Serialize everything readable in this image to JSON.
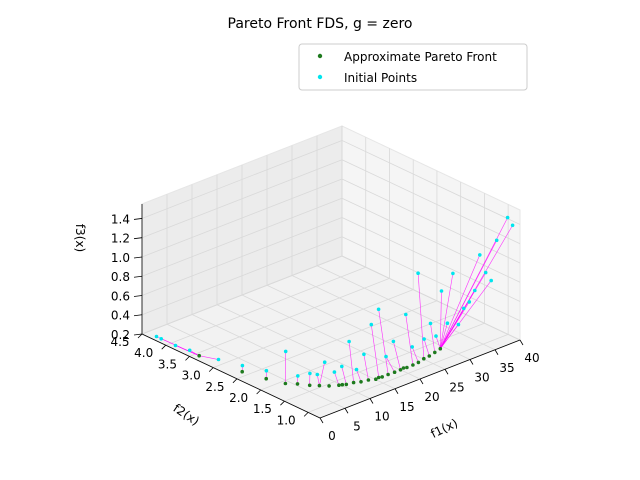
{
  "chart_data": {
    "type": "scatter",
    "title": "Pareto Front FDS, g = zero",
    "xlabel": "f1(x)",
    "ylabel": "f2(x)",
    "zlabel": "f3(x)",
    "xlim": [
      0,
      40
    ],
    "ylim": [
      0.75,
      4.5
    ],
    "zlim": [
      0.2,
      1.55
    ],
    "xticks": [
      "0",
      "5",
      "10",
      "15",
      "20",
      "25",
      "30",
      "35",
      "40"
    ],
    "yticks": [
      "1.0",
      "1.5",
      "2.0",
      "2.5",
      "3.0",
      "3.5",
      "4.0",
      "4.5"
    ],
    "zticks": [
      "0.2",
      "0.4",
      "0.6",
      "0.8",
      "1.0",
      "1.2",
      "1.4"
    ],
    "grid": true,
    "legend": "top-right",
    "series": [
      {
        "name": "Approximate Pareto Front",
        "color": "#1e7a1e",
        "points": [
          [
            2,
            2.6,
            0.21
          ],
          [
            4,
            1.9,
            0.21
          ],
          [
            6,
            1.6,
            0.22
          ],
          [
            8,
            1.4,
            0.22
          ],
          [
            10,
            1.25,
            0.23
          ],
          [
            12,
            1.15,
            0.24
          ],
          [
            14,
            1.05,
            0.25
          ],
          [
            16,
            1.0,
            0.27
          ],
          [
            18,
            0.95,
            0.29
          ],
          [
            20,
            0.9,
            0.31
          ],
          [
            22,
            0.88,
            0.34
          ],
          [
            24,
            0.86,
            0.37
          ],
          [
            3,
            2.2,
            0.21
          ],
          [
            5,
            1.75,
            0.22
          ],
          [
            7,
            1.5,
            0.22
          ],
          [
            9,
            1.3,
            0.23
          ],
          [
            11,
            1.2,
            0.24
          ],
          [
            13,
            1.1,
            0.25
          ],
          [
            15,
            1.02,
            0.26
          ],
          [
            17,
            0.97,
            0.28
          ],
          [
            19,
            0.92,
            0.3
          ],
          [
            21,
            0.89,
            0.32
          ],
          [
            23,
            0.87,
            0.35
          ],
          [
            25,
            0.85,
            0.39
          ],
          [
            1,
            3.4,
            0.21
          ],
          [
            9.5,
            1.28,
            0.23
          ],
          [
            14.5,
            1.04,
            0.26
          ],
          [
            18.5,
            0.94,
            0.3
          ]
        ]
      },
      {
        "name": "Initial Points",
        "color": "#00e5ee",
        "points": [
          [
            1,
            4.3,
            0.2
          ],
          [
            1,
            4.2,
            0.2
          ],
          [
            1,
            3.9,
            0.2
          ],
          [
            1,
            3.6,
            0.22
          ],
          [
            2,
            3.1,
            0.22
          ],
          [
            3,
            2.7,
            0.23
          ],
          [
            4,
            2.3,
            0.25
          ],
          [
            5,
            2.0,
            0.5
          ],
          [
            7,
            1.7,
            0.3
          ],
          [
            9,
            1.6,
            0.4
          ],
          [
            10,
            1.5,
            0.3
          ],
          [
            12,
            1.4,
            0.6
          ],
          [
            14,
            1.3,
            0.45
          ],
          [
            15,
            1.25,
            0.75
          ],
          [
            16,
            1.2,
            0.9
          ],
          [
            18,
            1.1,
            0.55
          ],
          [
            20,
            1.05,
            0.8
          ],
          [
            22,
            1.0,
            1.2
          ],
          [
            24,
            0.95,
            0.65
          ],
          [
            26,
            0.93,
            0.95
          ],
          [
            28,
            0.9,
            1.1
          ],
          [
            30,
            0.88,
            0.7
          ],
          [
            32,
            0.86,
            0.85
          ],
          [
            34,
            0.84,
            1.0
          ],
          [
            36,
            0.82,
            1.3
          ],
          [
            38,
            0.8,
            1.5
          ],
          [
            39,
            0.8,
            1.4
          ],
          [
            33,
            0.86,
            1.2
          ],
          [
            27,
            0.91,
            0.6
          ],
          [
            35,
            0.83,
            0.9
          ],
          [
            31,
            0.87,
            0.75
          ],
          [
            25,
            0.94,
            0.5
          ],
          [
            8,
            1.65,
            0.28
          ],
          [
            6,
            1.85,
            0.26
          ],
          [
            11,
            1.45,
            0.35
          ],
          [
            13,
            1.35,
            0.3
          ],
          [
            17,
            1.15,
            0.4
          ],
          [
            21,
            1.02,
            0.45
          ],
          [
            23,
            0.98,
            0.5
          ],
          [
            29,
            0.89,
            0.55
          ]
        ]
      }
    ]
  }
}
